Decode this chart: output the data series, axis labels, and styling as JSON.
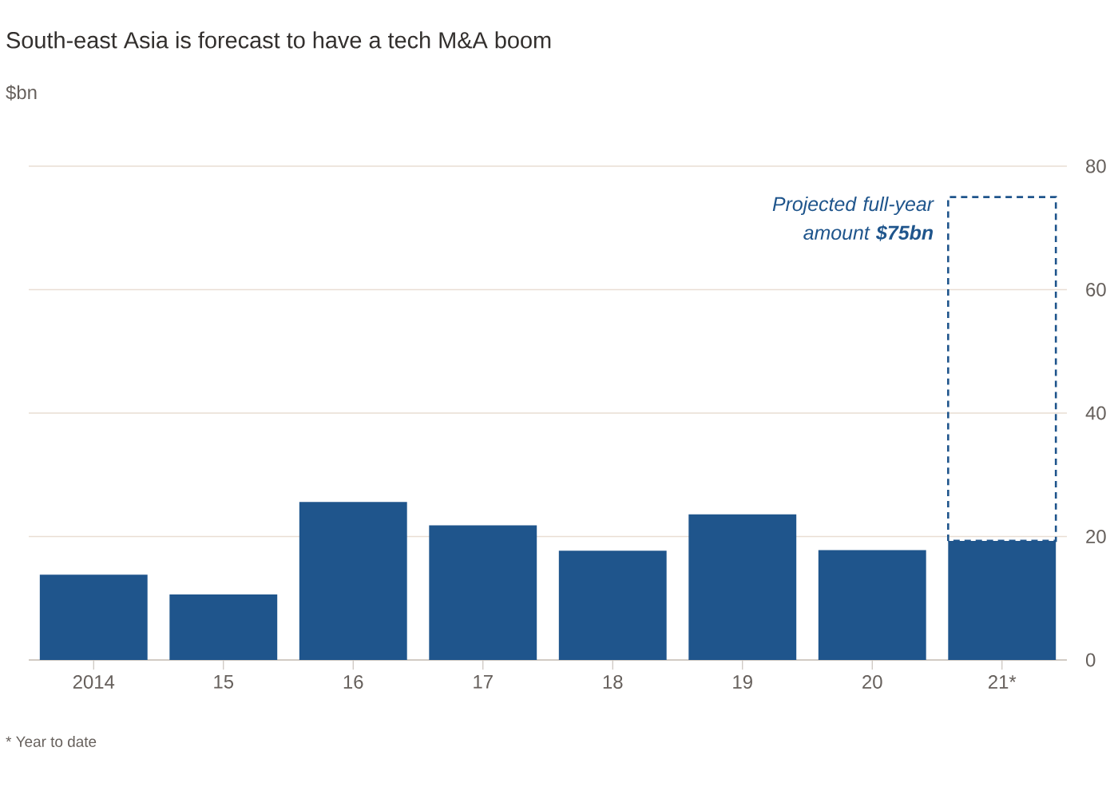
{
  "chart_data": {
    "type": "bar",
    "title": "South-east Asia is forecast to have a tech M&A boom",
    "ylabel": "$bn",
    "categories": [
      "2014",
      "15",
      "16",
      "17",
      "18",
      "19",
      "20",
      "21*"
    ],
    "stacked": true,
    "series": [
      {
        "values": [
          13.8,
          10.6,
          25.6,
          21.8,
          17.7,
          23.6,
          17.8,
          19.3
        ],
        "color": "#1f558c"
      },
      {
        "values": [
          null,
          null,
          null,
          null,
          null,
          null,
          null,
          55.7
        ],
        "color": "#1f558c",
        "line_style": "dashed"
      }
    ],
    "ylim": [
      0,
      80
    ],
    "yticks": [
      0,
      20,
      40,
      60,
      80
    ],
    "grid": "y",
    "annotations": [
      "Projected full-year amount **$75bn**",
      "* Year to date"
    ]
  }
}
